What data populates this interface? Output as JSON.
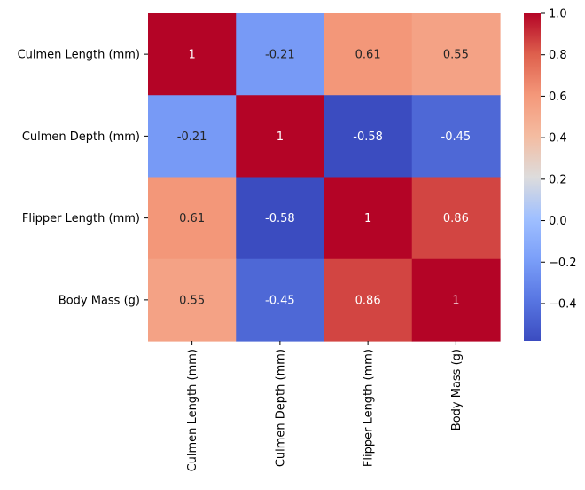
{
  "chart_data": {
    "type": "heatmap",
    "title": "",
    "xlabel": "",
    "ylabel": "",
    "rows": [
      "Culmen Length (mm)",
      "Culmen Depth (mm)",
      "Flipper Length (mm)",
      "Body Mass (g)"
    ],
    "columns": [
      "Culmen Length (mm)",
      "Culmen Depth (mm)",
      "Flipper Length (mm)",
      "Body Mass (g)"
    ],
    "values": [
      [
        1,
        -0.21,
        0.61,
        0.55
      ],
      [
        -0.21,
        1,
        -0.58,
        -0.45
      ],
      [
        0.61,
        -0.58,
        1,
        0.86
      ],
      [
        0.55,
        -0.45,
        0.86,
        1
      ]
    ],
    "cell_labels": [
      [
        "1",
        "-0.21",
        "0.61",
        "0.55"
      ],
      [
        "-0.21",
        "1",
        "-0.58",
        "-0.45"
      ],
      [
        "0.61",
        "-0.58",
        "1",
        "0.86"
      ],
      [
        "0.55",
        "-0.45",
        "0.86",
        "1"
      ]
    ],
    "colormap": "coolwarm",
    "colorbar": {
      "range": [
        -0.58,
        1.0
      ],
      "ticks": [
        -0.4,
        -0.2,
        0.0,
        0.2,
        0.4,
        0.6,
        0.8,
        1.0
      ],
      "tick_labels": [
        "−0.4",
        "−0.2",
        "0.0",
        "0.2",
        "0.4",
        "0.6",
        "0.8",
        "1.0"
      ]
    },
    "annotations": true
  }
}
